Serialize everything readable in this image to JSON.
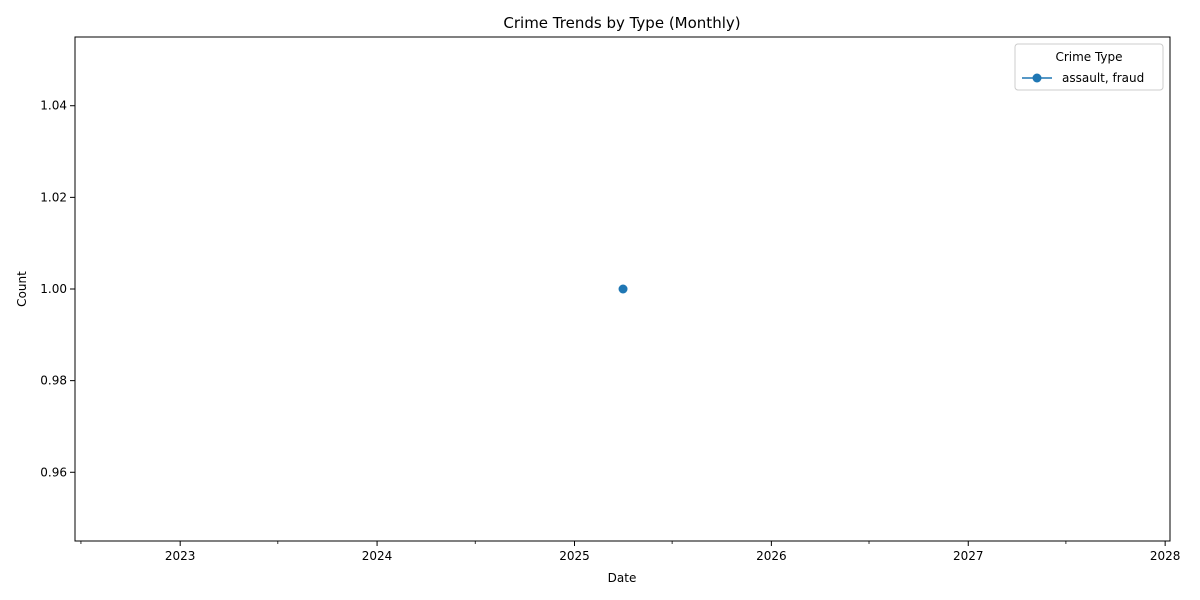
{
  "chart_data": {
    "type": "line",
    "title": "Crime Trends by Type (Monthly)",
    "xlabel": "Date",
    "ylabel": "Count",
    "x_axis": {
      "scale": "date",
      "range": [
        "2022-06-20",
        "2028-01-10"
      ],
      "major_ticks": [
        "2023-01-01",
        "2024-01-01",
        "2025-01-01",
        "2026-01-01",
        "2027-01-01",
        "2028-01-01"
      ],
      "major_tick_labels": [
        "2023",
        "2024",
        "2025",
        "2026",
        "2027",
        "2028"
      ],
      "minor_ticks": [
        "2022-07-01",
        "2023-07-01",
        "2024-07-01",
        "2025-07-01",
        "2026-07-01",
        "2027-07-01"
      ]
    },
    "y_axis": {
      "range": [
        0.945,
        1.055
      ],
      "ticks": [
        0.96,
        0.98,
        1.0,
        1.02,
        1.04
      ],
      "tick_labels": [
        "0.96",
        "0.98",
        "1.00",
        "1.02",
        "1.04"
      ]
    },
    "grid": false,
    "legend": {
      "title": "Crime Type",
      "placement": "top-right"
    },
    "series": [
      {
        "name": "assault, fraud",
        "color": "#1f77b4",
        "marker": "circle",
        "points": [
          {
            "x": "2025-04-01",
            "y": 1.0
          }
        ]
      }
    ]
  }
}
